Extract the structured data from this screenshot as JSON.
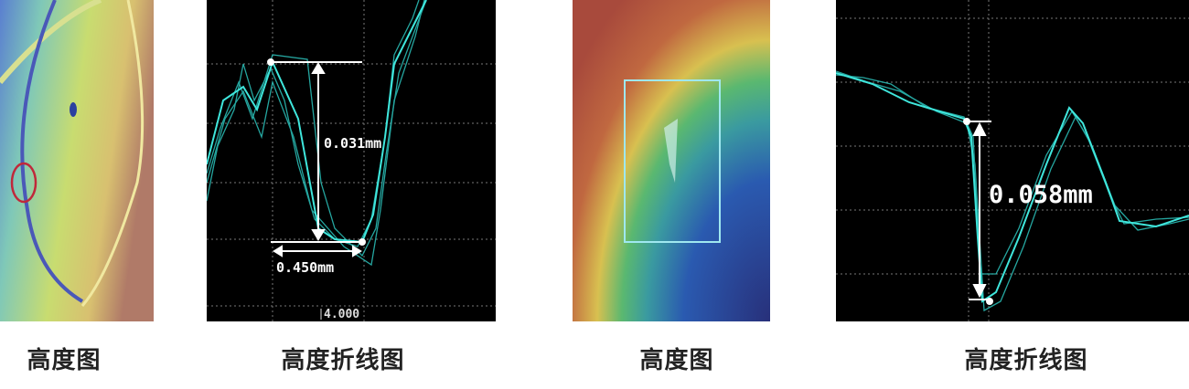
{
  "panels": [
    {
      "caption": "高度图",
      "type": "height-map",
      "colors": [
        "#3a5fb8",
        "#7fc6a0",
        "#d9dd6a",
        "#b08a70"
      ],
      "marker_color": "#c0283a"
    },
    {
      "caption": "高度折线图",
      "type": "height-profile",
      "trace_color": "#2fd0c8",
      "labels": {
        "height": "0.031mm",
        "width": "0.450mm",
        "axis": "4.000"
      }
    },
    {
      "caption": "高度图",
      "type": "height-map",
      "colors": [
        "#b04a3a",
        "#d8c050",
        "#3fae70",
        "#2a5ab0",
        "#28307a"
      ],
      "marker_color": "#9fe8f0"
    },
    {
      "caption": "高度折线图",
      "type": "height-profile",
      "trace_color": "#2fd0c8",
      "labels": {
        "height": "0.058mm"
      }
    }
  ]
}
